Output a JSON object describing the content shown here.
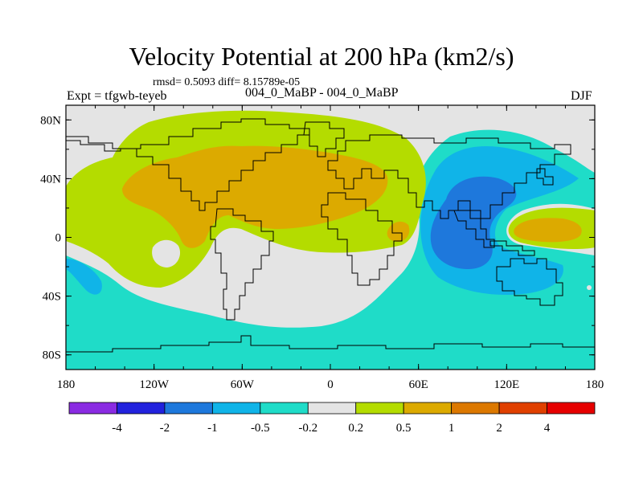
{
  "title": "Velocity Potential at 200 hPa (km2/s)",
  "stats": "rmsd= 0.5093 diff= 8.15789e-05",
  "experiment": "Expt = tfgwb-teyeb",
  "comparison": "004_0_MaBP - 004_0_MaBP",
  "season": "DJF",
  "map": {
    "projection": "cylindrical-equidistant",
    "lon_range": [
      -180,
      180
    ],
    "lat_range": [
      -90,
      90
    ],
    "x_ticks": [
      {
        "lon": -180,
        "label": "180"
      },
      {
        "lon": -120,
        "label": "120W"
      },
      {
        "lon": -60,
        "label": "60W"
      },
      {
        "lon": 0,
        "label": "0"
      },
      {
        "lon": 60,
        "label": "60E"
      },
      {
        "lon": 120,
        "label": "120E"
      },
      {
        "lon": 180,
        "label": "180"
      }
    ],
    "y_ticks": [
      {
        "lat": 80,
        "label": "80N"
      },
      {
        "lat": 40,
        "label": "40N"
      },
      {
        "lat": 0,
        "label": "0"
      },
      {
        "lat": -40,
        "label": "40S"
      },
      {
        "lat": -80,
        "label": "80S"
      }
    ]
  },
  "colorbar": {
    "colors": [
      "#8a2be2",
      "#2222dd",
      "#1e78dc",
      "#10b4e8",
      "#1fdcc8",
      "#e4e4e4",
      "#b4dc00",
      "#dcaa00",
      "#dc7800",
      "#e04000",
      "#e60000"
    ],
    "labels": [
      "-4",
      "-2",
      "-1",
      "-0.5",
      "-0.2",
      "0.2",
      "0.5",
      "1",
      "2",
      "4"
    ]
  },
  "field_colors": {
    "neutral": "#e4e4e4",
    "pos_05": "#b4dc00",
    "pos_1": "#dcaa00",
    "neg_02": "#1fdcc8",
    "neg_05": "#10b4e8",
    "neg_1": "#1e78dc"
  }
}
